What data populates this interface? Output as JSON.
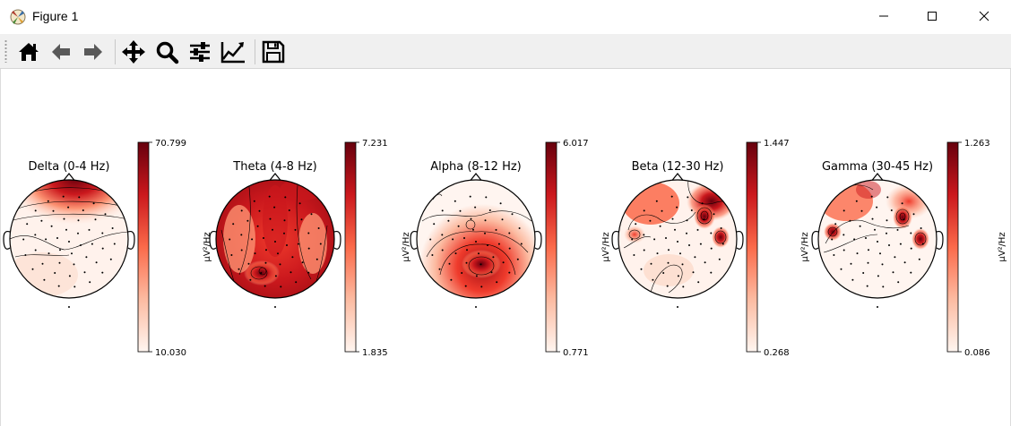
{
  "window": {
    "title": "Figure 1"
  },
  "toolbar": {
    "buttons": [
      {
        "name": "home",
        "icon": "home-icon"
      },
      {
        "name": "back",
        "icon": "arrow-left-icon"
      },
      {
        "name": "forward",
        "icon": "arrow-right-icon"
      },
      {
        "name": "pan",
        "icon": "move-icon"
      },
      {
        "name": "zoom",
        "icon": "magnifier-icon"
      },
      {
        "name": "configure-subplots",
        "icon": "sliders-icon"
      },
      {
        "name": "edit-axis",
        "icon": "line-chart-icon"
      },
      {
        "name": "save",
        "icon": "floppy-disk-icon"
      }
    ]
  },
  "chart_data": [
    {
      "type": "heatmap",
      "title": "Delta (0-4 Hz)",
      "colorbar": {
        "max": "70.799",
        "min": "10.030",
        "label": ""
      },
      "cmap": "Reds"
    },
    {
      "type": "heatmap",
      "title": "Theta (4-8 Hz)",
      "colorbar": {
        "max": "7.231",
        "min": "1.835",
        "label": "µV²/Hz"
      },
      "cmap": "Reds"
    },
    {
      "type": "heatmap",
      "title": "Alpha (8-12 Hz)",
      "colorbar": {
        "max": "6.017",
        "min": "0.771",
        "label": "µV²/Hz"
      },
      "cmap": "Reds"
    },
    {
      "type": "heatmap",
      "title": "Beta (12-30 Hz)",
      "colorbar": {
        "max": "1.447",
        "min": "0.268",
        "label": "µV²/Hz"
      },
      "cmap": "Reds"
    },
    {
      "type": "heatmap",
      "title": "Gamma (30-45 Hz)",
      "colorbar": {
        "max": "1.263",
        "min": "0.086",
        "label": "µV²/Hz"
      },
      "cmap": "Reds"
    }
  ]
}
